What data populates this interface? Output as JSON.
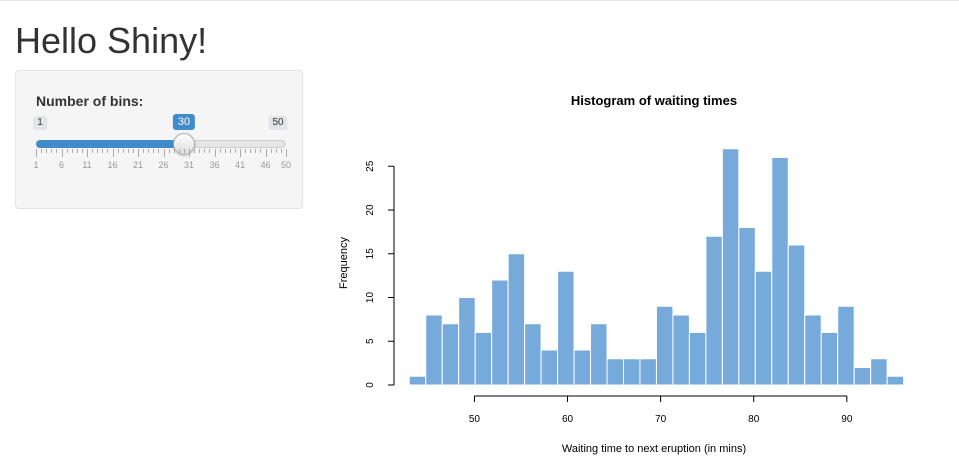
{
  "app": {
    "title": "Hello Shiny!"
  },
  "sidebar": {
    "label": "Number of bins:",
    "slider": {
      "min": 1,
      "max": 50,
      "value": 30,
      "min_label": "1",
      "max_label": "50",
      "value_label": "30",
      "tick_labels": [
        "1",
        "6",
        "11",
        "16",
        "21",
        "26",
        "31",
        "36",
        "41",
        "46",
        "50"
      ],
      "accent_color": "#428bca"
    }
  },
  "chart_data": {
    "type": "bar",
    "title": "Histogram of waiting times",
    "xlabel": "Waiting time to next eruption (in mins)",
    "ylabel": "Frequency",
    "bin_start": 43,
    "bin_width": 1.77,
    "values": [
      1,
      8,
      7,
      10,
      6,
      12,
      15,
      7,
      4,
      13,
      4,
      7,
      3,
      3,
      3,
      9,
      8,
      6,
      17,
      27,
      18,
      13,
      26,
      16,
      8,
      6,
      9,
      2,
      3,
      1
    ],
    "xticks": [
      50,
      60,
      70,
      80,
      90
    ],
    "yticks": [
      0,
      5,
      10,
      15,
      20,
      25
    ],
    "xlim": [
      40.5,
      97
    ],
    "ylim": [
      0,
      28
    ],
    "bar_color": "#75aadb",
    "bar_border": "#ffffff",
    "grid": false
  }
}
